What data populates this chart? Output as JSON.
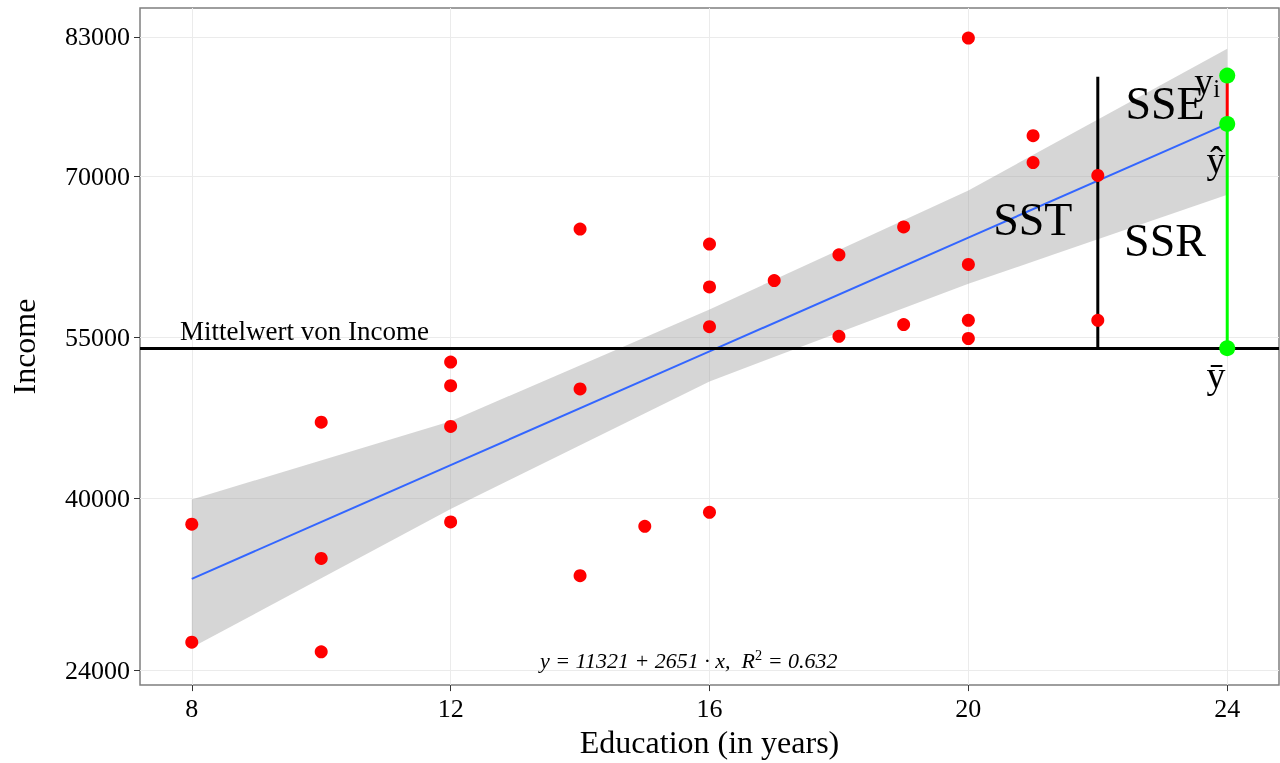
{
  "chart_data": {
    "type": "scatter",
    "xlabel": "Education (in years)",
    "ylabel": "Income",
    "xlim": [
      7.2,
      24.8
    ],
    "xticks": [
      8,
      12,
      16,
      20,
      24
    ],
    "ylim": [
      22600,
      85700
    ],
    "yticks": [
      24000,
      40000,
      55000,
      70000,
      83000
    ],
    "grid": true,
    "series": [
      {
        "marker": "circle",
        "color": "#ff0000",
        "x": [
          8,
          8,
          10,
          10,
          10,
          12,
          12,
          12,
          12,
          14,
          14,
          14,
          15,
          16,
          16,
          16,
          16,
          17,
          18,
          18,
          19,
          19,
          20,
          20,
          20,
          20,
          21,
          21,
          22,
          22
        ],
        "values": [
          37600,
          26600,
          47100,
          34400,
          25700,
          52700,
          50500,
          46700,
          37800,
          65100,
          50200,
          32800,
          37400,
          63700,
          59700,
          56000,
          38700,
          60300,
          62700,
          55100,
          65300,
          56200,
          82900,
          61800,
          56600,
          54900,
          73800,
          71300,
          70100,
          56600
        ]
      },
      {
        "type": "line",
        "marker": "none",
        "color": "#3366ff",
        "x": [
          8,
          12,
          16,
          20,
          24
        ],
        "values": [
          32500,
          43100,
          53700,
          64300,
          74900
        ],
        "lower": [
          26100,
          39000,
          50900,
          60000,
          68300
        ],
        "upper": [
          39900,
          47200,
          57600,
          68700,
          81900
        ]
      },
      {
        "type": "line",
        "marker": "none",
        "color": "#000000",
        "x": [
          22,
          22
        ],
        "values": [
          79300,
          54000
        ]
      },
      {
        "type": "line",
        "marker": "none",
        "color": "#ff0000",
        "x": [
          24,
          24
        ],
        "values": [
          79400,
          74900
        ]
      },
      {
        "type": "line",
        "marker": "none",
        "color": "#00ff00",
        "x": [
          24,
          24
        ],
        "values": [
          74900,
          54000
        ]
      },
      {
        "type": "scatter",
        "marker": "circle",
        "color": "#00ff00",
        "x": [
          24,
          24,
          24
        ],
        "values": [
          79400,
          74900,
          54000
        ]
      }
    ],
    "ref_lines": [
      {
        "axis": "y",
        "value": 54000,
        "label": "Mittelwert von Income",
        "color": "#000000"
      }
    ],
    "annotations": [
      {
        "text": "SST",
        "x": 22,
        "y": 66000
      },
      "SSE",
      "SSR",
      {
        "text": "y$_{i}$",
        "x": 24,
        "y": 79400
      },
      "ŷ",
      "ȳ",
      "y = 11321 + 2651 · x,  R$^{2}$ = 0.632"
    ]
  }
}
